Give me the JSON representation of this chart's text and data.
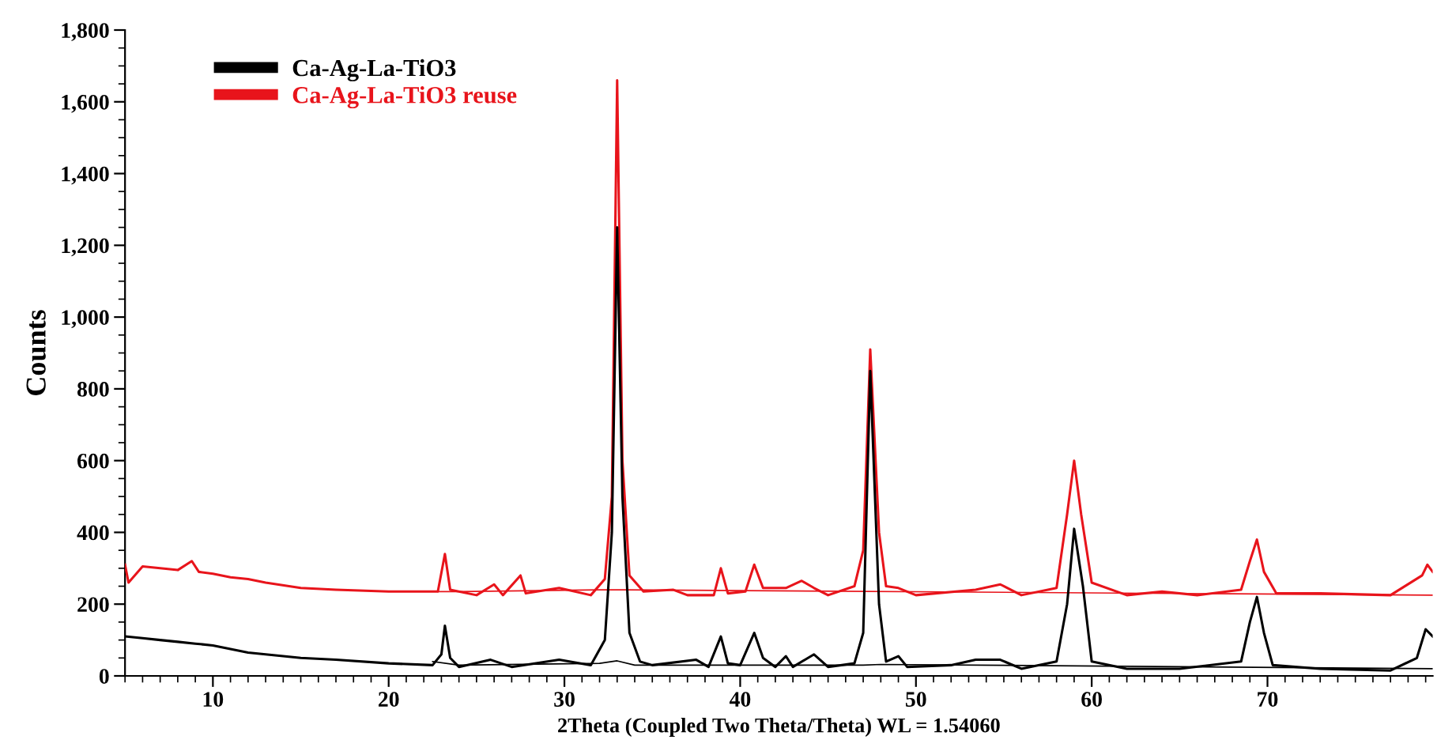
{
  "chart_data": {
    "type": "line",
    "xlabel": "2Theta (Coupled Two Theta/Theta) WL = 1.54060",
    "ylabel": "Counts",
    "xlim": [
      5,
      79.4
    ],
    "xticks": [
      10,
      20,
      30,
      40,
      50,
      60,
      70
    ],
    "ylim": [
      0,
      1800
    ],
    "yticks": [
      0,
      200,
      400,
      600,
      800,
      {
        "value": 1000,
        "label": "1,000"
      },
      {
        "value": 1200,
        "label": "1,200"
      },
      {
        "value": 1400,
        "label": "1,400"
      },
      {
        "value": 1600,
        "label": "1,600"
      },
      {
        "value": 1800,
        "label": "1,800"
      }
    ],
    "grid": false,
    "legend": "top left",
    "marker": "none",
    "line_style": "solid",
    "series": [
      {
        "name": "Ca-Ag-La-TiO3",
        "color": "#000000",
        "x": [
          5,
          6,
          7,
          8,
          9,
          10,
          11,
          12,
          13,
          14,
          15,
          17,
          20,
          22.5,
          23.0,
          23.2,
          23.5,
          24,
          25.8,
          27,
          29.7,
          31.5,
          32.3,
          32.7,
          33.0,
          33.3,
          33.7,
          34.3,
          35,
          37.5,
          38.2,
          38.9,
          39.3,
          40.0,
          40.8,
          41.3,
          42,
          42.6,
          43,
          44.2,
          45,
          46.5,
          47.0,
          47.4,
          47.9,
          48.3,
          49,
          49.5,
          52,
          53.4,
          54.8,
          56,
          58,
          58.6,
          59.0,
          59.5,
          60,
          62,
          65,
          68.5,
          69.0,
          69.4,
          69.8,
          70.3,
          73,
          77,
          78.5,
          79,
          79.4
        ],
        "values": [
          110,
          105,
          100,
          95,
          90,
          85,
          75,
          65,
          60,
          55,
          50,
          45,
          35,
          30,
          60,
          140,
          50,
          25,
          45,
          25,
          45,
          30,
          100,
          400,
          1250,
          500,
          120,
          40,
          30,
          45,
          25,
          110,
          35,
          30,
          120,
          50,
          25,
          55,
          25,
          60,
          25,
          35,
          120,
          850,
          200,
          40,
          55,
          25,
          30,
          45,
          45,
          20,
          40,
          200,
          410,
          250,
          40,
          20,
          20,
          40,
          150,
          220,
          120,
          30,
          20,
          15,
          50,
          130,
          110
        ]
      },
      {
        "name": "Ca-Ag-La-TiO3 reuse",
        "color": "#e8141b",
        "x": [
          5,
          5.2,
          6,
          7,
          8,
          8.8,
          9.2,
          10,
          11,
          12,
          13,
          15,
          17,
          20,
          22.8,
          23.2,
          23.5,
          25,
          26,
          26.5,
          27.5,
          27.8,
          29.7,
          31.5,
          32.3,
          32.7,
          33.0,
          33.3,
          33.7,
          34.5,
          36.2,
          37,
          38.5,
          38.9,
          39.3,
          40.3,
          40.8,
          41.3,
          42.6,
          43.5,
          44.2,
          45,
          46.5,
          47.0,
          47.4,
          47.9,
          48.3,
          49,
          50,
          53.4,
          54.8,
          56,
          58,
          58.6,
          59.0,
          59.4,
          60.0,
          62,
          64,
          66,
          68.5,
          69.0,
          69.4,
          69.8,
          70.5,
          73,
          77,
          78.8,
          79.1,
          79.4
        ],
        "values": [
          310,
          260,
          305,
          300,
          295,
          320,
          290,
          285,
          275,
          270,
          260,
          245,
          240,
          235,
          235,
          340,
          240,
          225,
          255,
          225,
          280,
          230,
          245,
          225,
          270,
          500,
          1660,
          600,
          280,
          235,
          240,
          225,
          225,
          300,
          230,
          235,
          310,
          245,
          245,
          265,
          245,
          225,
          250,
          350,
          910,
          400,
          250,
          245,
          225,
          240,
          255,
          225,
          245,
          450,
          600,
          450,
          260,
          225,
          235,
          225,
          240,
          320,
          380,
          290,
          230,
          230,
          225,
          280,
          310,
          290
        ]
      },
      {
        "color": "#000000",
        "x": [
          22.5,
          24,
          32,
          33,
          34,
          47,
          48,
          79.4
        ],
        "values": [
          40,
          30,
          35,
          42,
          30,
          30,
          32,
          20
        ]
      },
      {
        "color": "#e8141b",
        "x": [
          22.8,
          24,
          32,
          33.5,
          79.4
        ],
        "values": [
          235,
          235,
          240,
          240,
          225
        ]
      }
    ]
  }
}
